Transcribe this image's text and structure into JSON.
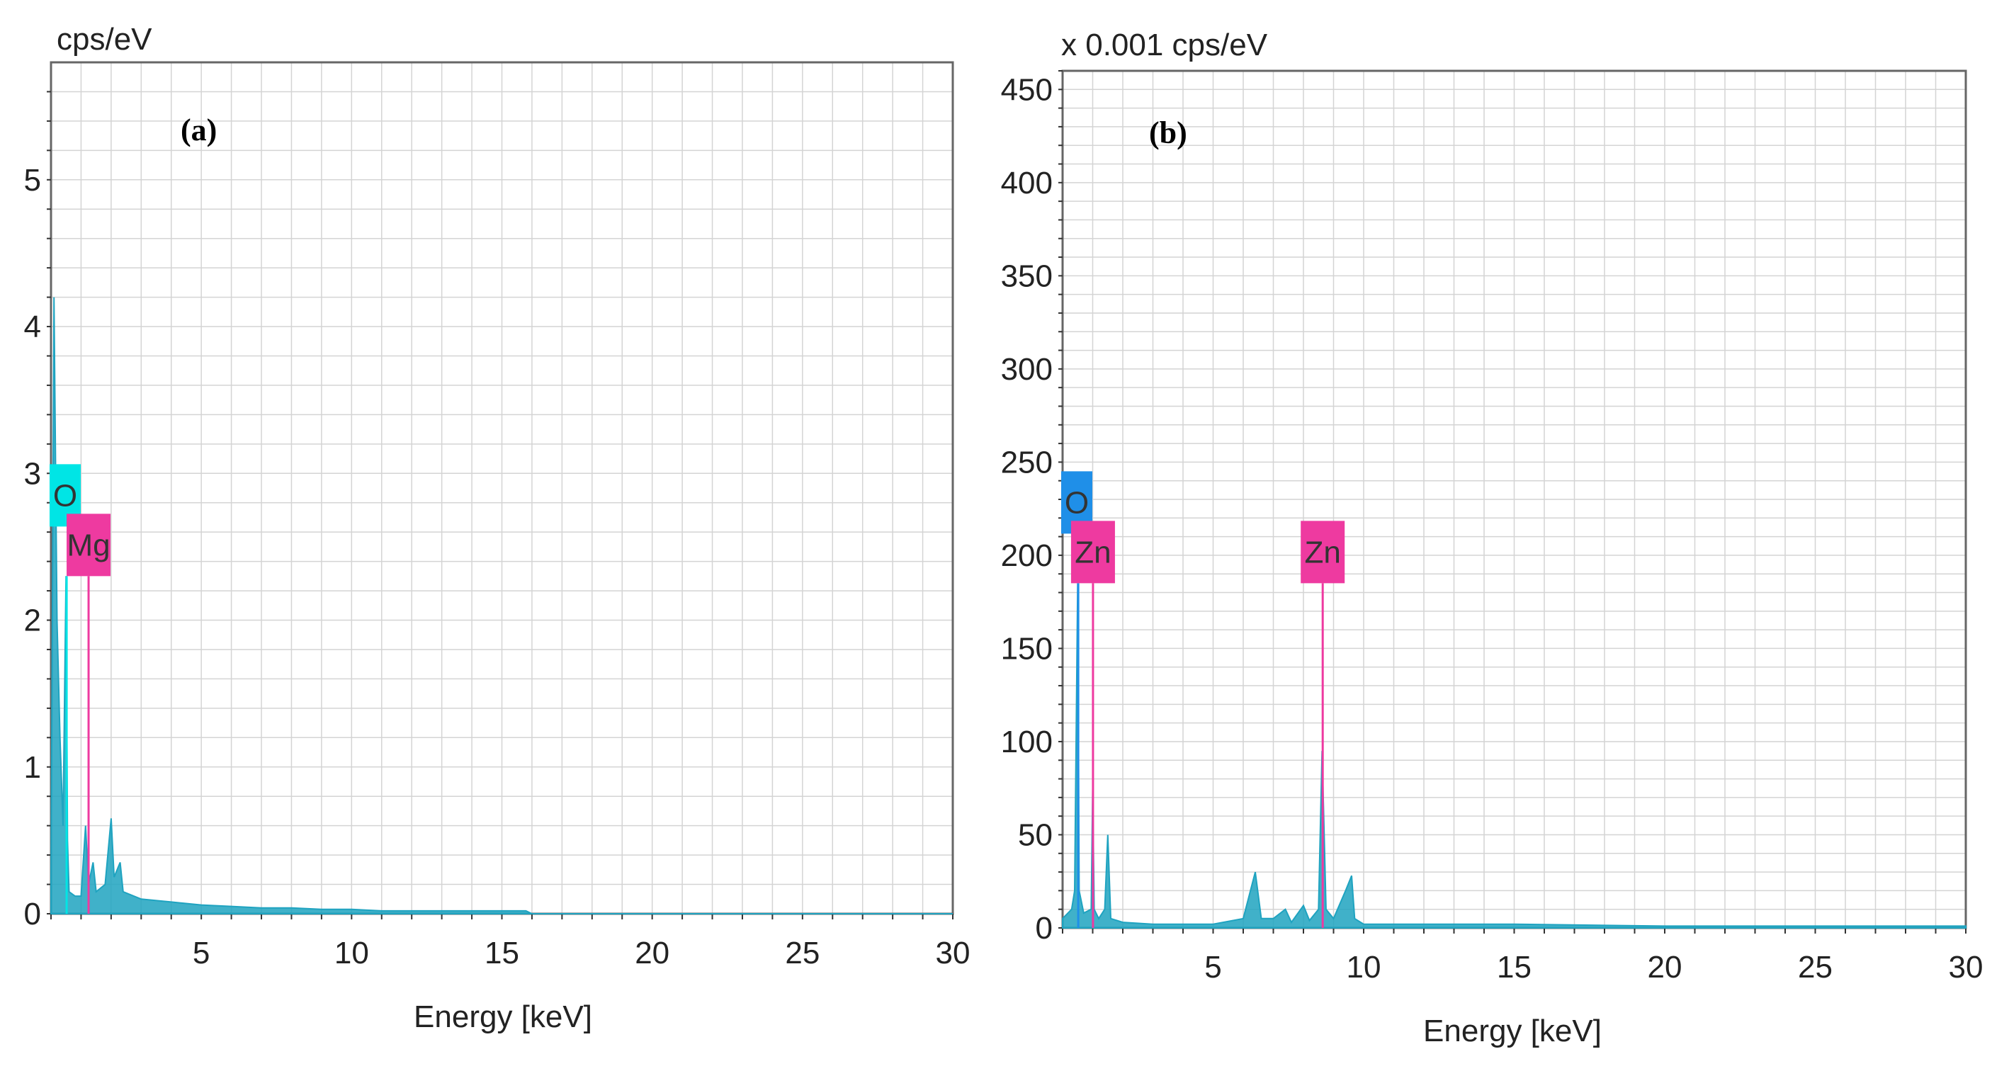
{
  "colors": {
    "spectrum": "#1fa3c0",
    "grid": "#d4d4d4",
    "frame": "#666666",
    "oxygen_a": "#00e5e5",
    "oxygen_b": "#1f8fe8",
    "metal": "#ee3aa0"
  },
  "chart_data": [
    {
      "type": "area",
      "panel_label": "(a)",
      "unit_label": "cps/eV",
      "xlabel": "Energy [keV]",
      "xlim": [
        0,
        30
      ],
      "ylim": [
        0,
        5.8
      ],
      "x_ticks": [
        5,
        10,
        15,
        20,
        25,
        30
      ],
      "y_ticks": [
        0,
        1,
        2,
        3,
        4,
        5
      ],
      "series": [
        {
          "name": "spectrum",
          "points": [
            [
              0.0,
              0.2
            ],
            [
              0.1,
              4.2
            ],
            [
              0.2,
              2.0
            ],
            [
              0.3,
              1.2
            ],
            [
              0.4,
              0.6
            ],
            [
              0.5,
              2.3
            ],
            [
              0.55,
              0.5
            ],
            [
              0.6,
              0.15
            ],
            [
              0.8,
              0.12
            ],
            [
              1.0,
              0.12
            ],
            [
              1.15,
              0.6
            ],
            [
              1.25,
              0.2
            ],
            [
              1.4,
              0.35
            ],
            [
              1.5,
              0.15
            ],
            [
              1.8,
              0.2
            ],
            [
              2.0,
              0.65
            ],
            [
              2.1,
              0.25
            ],
            [
              2.3,
              0.35
            ],
            [
              2.4,
              0.15
            ],
            [
              3,
              0.1
            ],
            [
              4,
              0.08
            ],
            [
              5,
              0.06
            ],
            [
              6,
              0.05
            ],
            [
              7,
              0.04
            ],
            [
              8,
              0.04
            ],
            [
              9,
              0.03
            ],
            [
              10,
              0.03
            ],
            [
              11,
              0.02
            ],
            [
              12,
              0.02
            ],
            [
              13,
              0.02
            ],
            [
              14,
              0.02
            ],
            [
              15,
              0.02
            ],
            [
              15.8,
              0.02
            ],
            [
              16,
              0.0
            ],
            [
              30,
              0.0
            ]
          ]
        }
      ],
      "element_markers": [
        {
          "label": "O",
          "energy": 0.52,
          "height": 2.3,
          "color": "oxygen_a"
        },
        {
          "label": "Mg",
          "energy": 1.25,
          "height": 2.3,
          "color": "metal"
        }
      ]
    },
    {
      "type": "area",
      "panel_label": "(b)",
      "unit_label": "x 0.001 cps/eV",
      "xlabel": "Energy [keV]",
      "xlim": [
        0,
        30
      ],
      "ylim": [
        0,
        460
      ],
      "x_ticks": [
        5,
        10,
        15,
        20,
        25,
        30
      ],
      "y_ticks": [
        0,
        50,
        100,
        150,
        200,
        250,
        300,
        350,
        400,
        450
      ],
      "series": [
        {
          "name": "spectrum",
          "points": [
            [
              0.0,
              5
            ],
            [
              0.3,
              10
            ],
            [
              0.4,
              20
            ],
            [
              0.5,
              185
            ],
            [
              0.55,
              20
            ],
            [
              0.7,
              8
            ],
            [
              0.95,
              10
            ],
            [
              1.0,
              75
            ],
            [
              1.05,
              10
            ],
            [
              1.2,
              5
            ],
            [
              1.4,
              10
            ],
            [
              1.5,
              50
            ],
            [
              1.6,
              5
            ],
            [
              2,
              3
            ],
            [
              3,
              2
            ],
            [
              4,
              2
            ],
            [
              5,
              2
            ],
            [
              6,
              5
            ],
            [
              6.4,
              30
            ],
            [
              6.6,
              5
            ],
            [
              7,
              5
            ],
            [
              7.4,
              10
            ],
            [
              7.6,
              3
            ],
            [
              8,
              12
            ],
            [
              8.2,
              4
            ],
            [
              8.5,
              10
            ],
            [
              8.62,
              95
            ],
            [
              8.75,
              10
            ],
            [
              9.0,
              5
            ],
            [
              9.4,
              20
            ],
            [
              9.6,
              28
            ],
            [
              9.7,
              5
            ],
            [
              10,
              2
            ],
            [
              12,
              2
            ],
            [
              15,
              2
            ],
            [
              20,
              1
            ],
            [
              25,
              1
            ],
            [
              30,
              1
            ]
          ]
        }
      ],
      "element_markers": [
        {
          "label": "O",
          "energy": 0.52,
          "height": 185,
          "color": "oxygen_b"
        },
        {
          "label": "Zn",
          "energy": 1.01,
          "height": 185,
          "color": "metal"
        },
        {
          "label": "Zn",
          "energy": 8.64,
          "height": 185,
          "color": "metal"
        }
      ]
    }
  ]
}
